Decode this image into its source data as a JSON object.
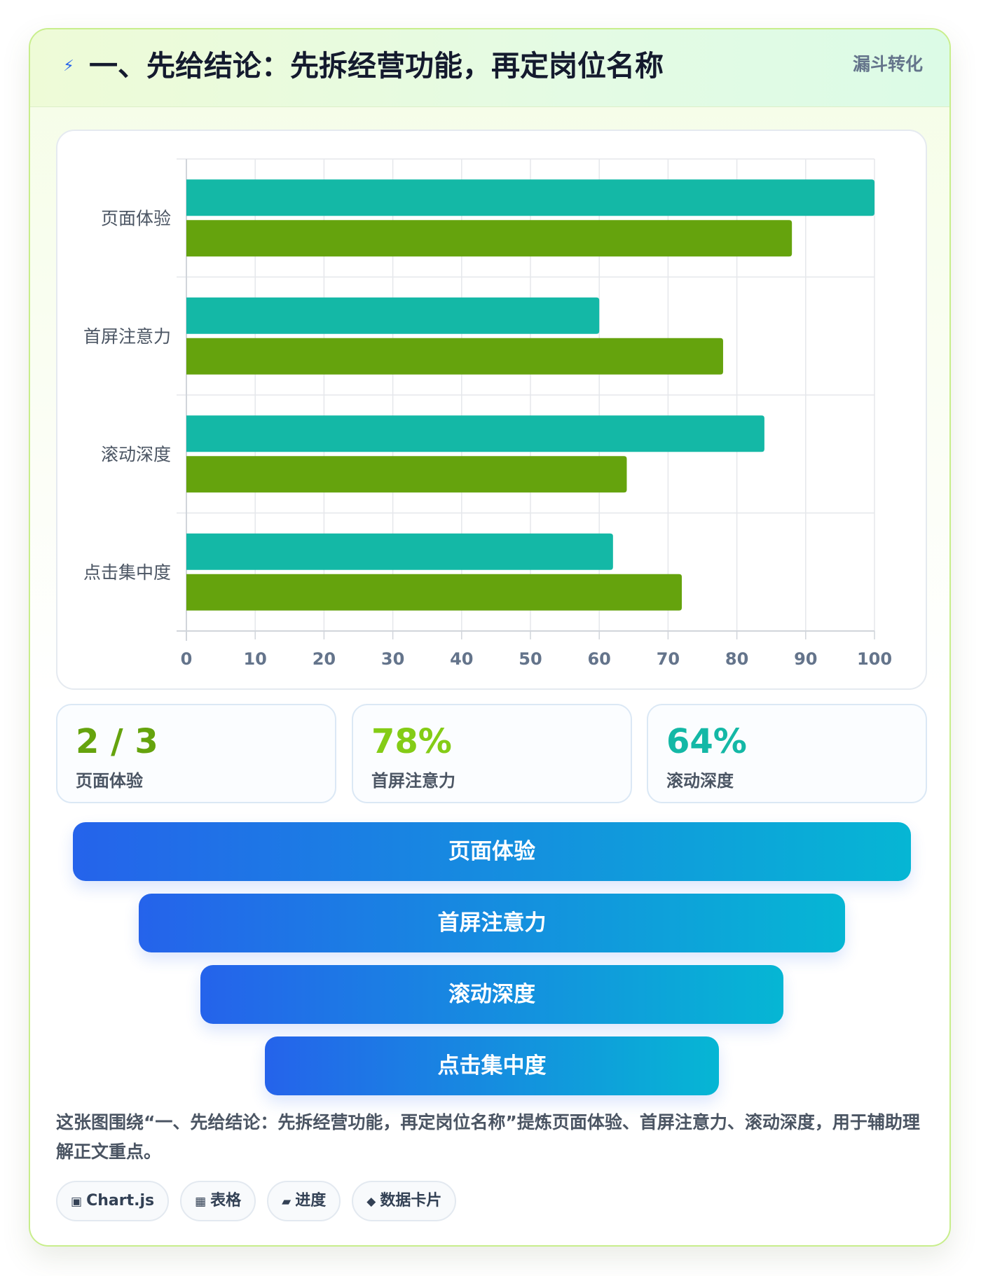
{
  "header": {
    "icon": "lightning-icon",
    "icon_glyph": "⚡",
    "title": "一、先给结论：先拆经营功能，再定岗位名称",
    "tag": "漏斗转化"
  },
  "chart_data": {
    "type": "bar",
    "orientation": "horizontal",
    "categories": [
      "页面体验",
      "首屏注意力",
      "滚动深度",
      "点击集中度"
    ],
    "series": [
      {
        "color": "#14b8a6",
        "values": [
          100,
          60,
          84,
          62
        ]
      },
      {
        "color": "#65a30d",
        "values": [
          88,
          78,
          64,
          72
        ]
      }
    ],
    "xlim": [
      0,
      100
    ],
    "xticks": [
      0,
      10,
      20,
      30,
      40,
      50,
      60,
      70,
      80,
      90,
      100
    ],
    "grid": true,
    "legend": "none",
    "title": "",
    "xlabel": "",
    "ylabel": ""
  },
  "stats": [
    {
      "value": "2 / 3",
      "label": "页面体验",
      "color": "#65a30d"
    },
    {
      "value": "78%",
      "label": "首屏注意力",
      "color": "#84cc16"
    },
    {
      "value": "64%",
      "label": "滚动深度",
      "color": "#14b8a6"
    }
  ],
  "funnel": [
    "页面体验",
    "首屏注意力",
    "滚动深度",
    "点击集中度"
  ],
  "caption": "这张图围绕“一、先给结论：先拆经营功能，再定岗位名称”提炼页面体验、首屏注意力、滚动深度，用于辅助理解正文重点。",
  "chips": [
    {
      "icon": "chart-square-icon",
      "glyph": "▣",
      "label": "Chart.js"
    },
    {
      "icon": "table-icon",
      "glyph": "▦",
      "label": "表格"
    },
    {
      "icon": "progress-icon",
      "glyph": "▰",
      "label": "进度"
    },
    {
      "icon": "diamond-icon",
      "glyph": "◆",
      "label": "数据卡片"
    }
  ]
}
